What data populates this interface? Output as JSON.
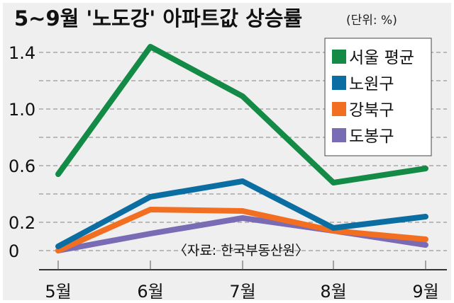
{
  "chart_data": {
    "type": "line",
    "title": "5~9월 '노도강' 아파트값 상승률",
    "unit_label": "(단위: %)",
    "source": "〈자료: 한국부동산원〉",
    "categories": [
      "5월",
      "6월",
      "7월",
      "8월",
      "9월"
    ],
    "ylim": [
      0,
      1.4
    ],
    "yticks": [
      0,
      0.2,
      0.6,
      1.0,
      1.4
    ],
    "ytick_labels": [
      "0",
      "0.2",
      "0.6",
      "1.0",
      "1.4"
    ],
    "gridlines": [
      0,
      0.2,
      0.4,
      0.6,
      0.8,
      1.0,
      1.2,
      1.4
    ],
    "legend_position": "top-right",
    "series": [
      {
        "name": "서울 평균",
        "color": "#138a45",
        "values": [
          0.54,
          1.44,
          1.09,
          0.48,
          0.58
        ]
      },
      {
        "name": "노원구",
        "color": "#0b6ea3",
        "values": [
          0.03,
          0.38,
          0.49,
          0.16,
          0.24
        ]
      },
      {
        "name": "강북구",
        "color": "#f26f21",
        "values": [
          0.0,
          0.29,
          0.28,
          0.14,
          0.08
        ]
      },
      {
        "name": "도봉구",
        "color": "#7a6bb5",
        "values": [
          0.0,
          0.12,
          0.23,
          0.14,
          0.04
        ]
      }
    ]
  }
}
